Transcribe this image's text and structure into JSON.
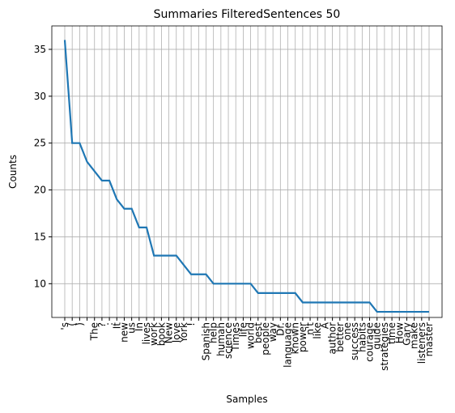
{
  "chart_data": {
    "type": "line",
    "title": "Summaries FilteredSentences 50",
    "xlabel": "Samples",
    "ylabel": "Counts",
    "categories": [
      "'s",
      "(",
      ")",
      null,
      "The",
      "?",
      ":",
      "It",
      "new",
      "us",
      "In",
      "lives",
      "work",
      "book",
      "New",
      "love",
      "York",
      "!",
      null,
      "Spanish",
      "help",
      "human",
      "science",
      "Times",
      "life",
      "world",
      "best",
      "people",
      "way",
      "Dr.",
      "language",
      "known",
      "power",
      "n't",
      "like",
      "A",
      "author",
      "better",
      "one",
      "success",
      "habits",
      "courage",
      "guide",
      "strategies",
      "time",
      "How",
      "Gary",
      "make",
      "listeners",
      "master"
    ],
    "values": [
      36,
      25,
      25,
      23,
      22,
      21,
      21,
      19,
      18,
      18,
      16,
      16,
      13,
      13,
      13,
      13,
      12,
      11,
      11,
      11,
      10,
      10,
      10,
      10,
      10,
      10,
      9,
      9,
      9,
      9,
      9,
      9,
      8,
      8,
      8,
      8,
      8,
      8,
      8,
      8,
      8,
      8,
      7,
      7,
      7,
      7,
      7,
      7,
      7,
      7
    ],
    "color": "#1f77b4",
    "ylim": [
      6.4,
      37.5
    ],
    "yticks": [
      10,
      15,
      20,
      25,
      30,
      35
    ],
    "grid": true
  }
}
